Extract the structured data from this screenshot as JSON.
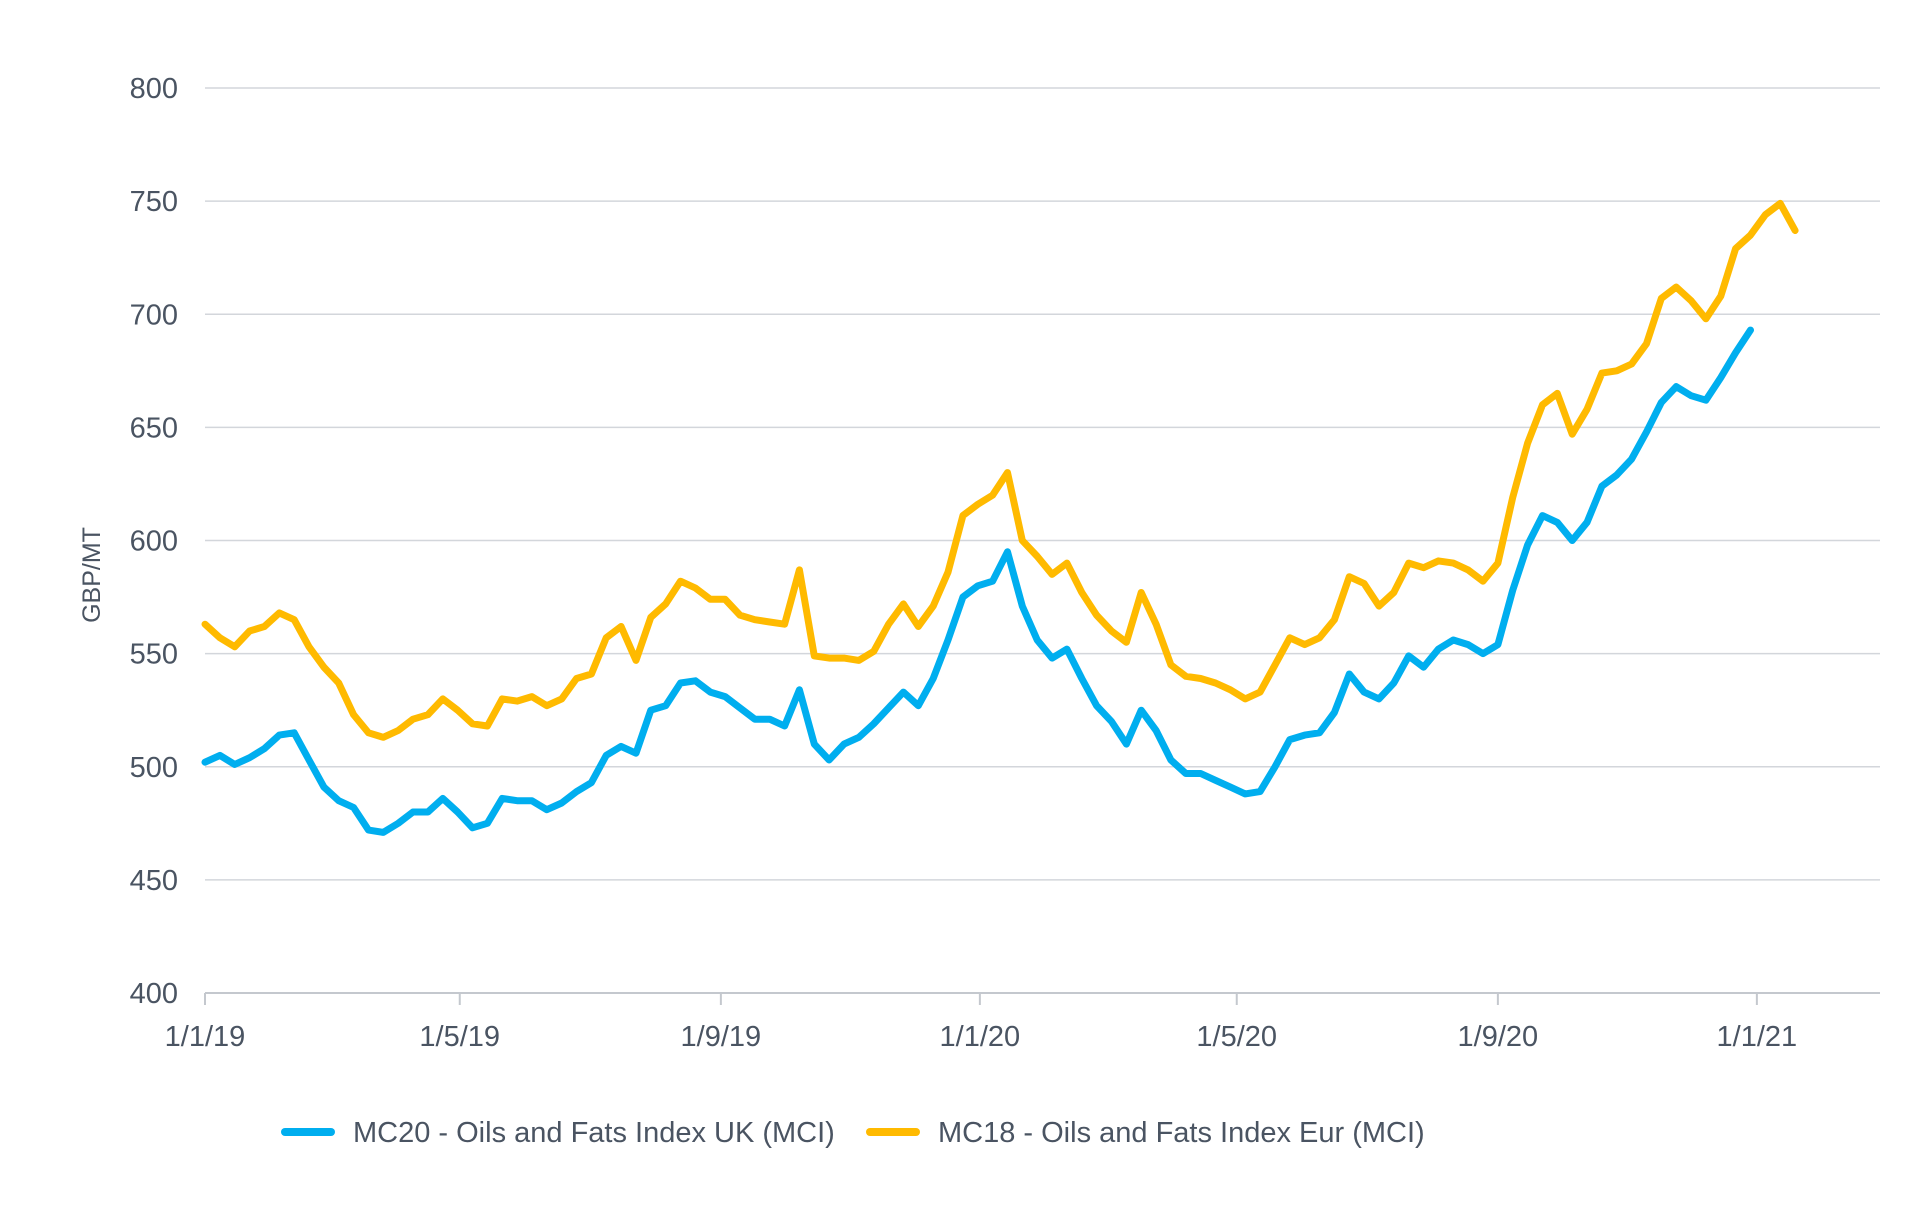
{
  "chart_data": {
    "type": "line",
    "title": "",
    "xlabel": "",
    "ylabel": "GBP/MT",
    "ylim": [
      400,
      800
    ],
    "yticks": [
      400,
      450,
      500,
      550,
      600,
      650,
      700,
      750,
      800
    ],
    "xlim": [
      "2019-01-01",
      "2021-02-28"
    ],
    "xticks": [
      {
        "date": "2019-01-01",
        "label": "1/1/19"
      },
      {
        "date": "2019-05-01",
        "label": "1/5/19"
      },
      {
        "date": "2019-09-01",
        "label": "1/9/19"
      },
      {
        "date": "2020-01-01",
        "label": "1/1/20"
      },
      {
        "date": "2020-05-01",
        "label": "1/5/20"
      },
      {
        "date": "2020-09-01",
        "label": "1/9/20"
      },
      {
        "date": "2021-01-01",
        "label": "1/1/21"
      }
    ],
    "grid": true,
    "legend_position": "bottom",
    "series": [
      {
        "name": "MC20 - Oils and Fats Index UK (MCI)",
        "color": "#00aeef",
        "points": [
          [
            "2019-01-01",
            502
          ],
          [
            "2019-01-08",
            505
          ],
          [
            "2019-01-15",
            501
          ],
          [
            "2019-01-22",
            504
          ],
          [
            "2019-01-29",
            508
          ],
          [
            "2019-02-05",
            514
          ],
          [
            "2019-02-12",
            515
          ],
          [
            "2019-02-19",
            503
          ],
          [
            "2019-02-26",
            491
          ],
          [
            "2019-03-05",
            485
          ],
          [
            "2019-03-12",
            482
          ],
          [
            "2019-03-19",
            472
          ],
          [
            "2019-03-26",
            471
          ],
          [
            "2019-04-02",
            475
          ],
          [
            "2019-04-09",
            480
          ],
          [
            "2019-04-16",
            480
          ],
          [
            "2019-04-23",
            486
          ],
          [
            "2019-04-30",
            480
          ],
          [
            "2019-05-07",
            473
          ],
          [
            "2019-05-14",
            475
          ],
          [
            "2019-05-21",
            486
          ],
          [
            "2019-05-28",
            485
          ],
          [
            "2019-06-04",
            485
          ],
          [
            "2019-06-11",
            481
          ],
          [
            "2019-06-18",
            484
          ],
          [
            "2019-06-25",
            489
          ],
          [
            "2019-07-02",
            493
          ],
          [
            "2019-07-09",
            505
          ],
          [
            "2019-07-16",
            509
          ],
          [
            "2019-07-23",
            506
          ],
          [
            "2019-07-30",
            525
          ],
          [
            "2019-08-06",
            527
          ],
          [
            "2019-08-13",
            537
          ],
          [
            "2019-08-20",
            538
          ],
          [
            "2019-08-27",
            533
          ],
          [
            "2019-09-03",
            531
          ],
          [
            "2019-09-10",
            526
          ],
          [
            "2019-09-17",
            521
          ],
          [
            "2019-09-24",
            521
          ],
          [
            "2019-10-01",
            518
          ],
          [
            "2019-10-08",
            534
          ],
          [
            "2019-10-15",
            510
          ],
          [
            "2019-10-22",
            503
          ],
          [
            "2019-10-29",
            510
          ],
          [
            "2019-11-05",
            513
          ],
          [
            "2019-11-12",
            519
          ],
          [
            "2019-11-19",
            526
          ],
          [
            "2019-11-26",
            533
          ],
          [
            "2019-12-03",
            527
          ],
          [
            "2019-12-10",
            539
          ],
          [
            "2019-12-17",
            556
          ],
          [
            "2019-12-24",
            575
          ],
          [
            "2019-12-31",
            580
          ],
          [
            "2020-01-07",
            582
          ],
          [
            "2020-01-14",
            595
          ],
          [
            "2020-01-21",
            571
          ],
          [
            "2020-01-28",
            556
          ],
          [
            "2020-02-04",
            548
          ],
          [
            "2020-02-11",
            552
          ],
          [
            "2020-02-18",
            539
          ],
          [
            "2020-02-25",
            527
          ],
          [
            "2020-03-03",
            520
          ],
          [
            "2020-03-10",
            510
          ],
          [
            "2020-03-17",
            525
          ],
          [
            "2020-03-24",
            516
          ],
          [
            "2020-03-31",
            503
          ],
          [
            "2020-04-07",
            497
          ],
          [
            "2020-04-14",
            497
          ],
          [
            "2020-04-21",
            494
          ],
          [
            "2020-04-28",
            491
          ],
          [
            "2020-05-05",
            488
          ],
          [
            "2020-05-12",
            489
          ],
          [
            "2020-05-19",
            500
          ],
          [
            "2020-05-26",
            512
          ],
          [
            "2020-06-02",
            514
          ],
          [
            "2020-06-09",
            515
          ],
          [
            "2020-06-16",
            524
          ],
          [
            "2020-06-23",
            541
          ],
          [
            "2020-06-30",
            533
          ],
          [
            "2020-07-07",
            530
          ],
          [
            "2020-07-14",
            537
          ],
          [
            "2020-07-21",
            549
          ],
          [
            "2020-07-28",
            544
          ],
          [
            "2020-08-04",
            552
          ],
          [
            "2020-08-11",
            556
          ],
          [
            "2020-08-18",
            554
          ],
          [
            "2020-08-25",
            550
          ],
          [
            "2020-09-01",
            554
          ],
          [
            "2020-09-08",
            578
          ],
          [
            "2020-09-15",
            598
          ],
          [
            "2020-09-22",
            611
          ],
          [
            "2020-09-29",
            608
          ],
          [
            "2020-10-06",
            600
          ],
          [
            "2020-10-13",
            608
          ],
          [
            "2020-10-20",
            624
          ],
          [
            "2020-10-27",
            629
          ],
          [
            "2020-11-03",
            636
          ],
          [
            "2020-11-10",
            648
          ],
          [
            "2020-11-17",
            661
          ],
          [
            "2020-11-24",
            668
          ],
          [
            "2020-12-01",
            664
          ],
          [
            "2020-12-08",
            662
          ],
          [
            "2020-12-15",
            672
          ],
          [
            "2020-12-22",
            683
          ],
          [
            "2020-12-29",
            693
          ]
        ]
      },
      {
        "name": "MC18 - Oils and Fats Index Eur (MCI)",
        "color": "#ffba00",
        "points": [
          [
            "2019-01-01",
            563
          ],
          [
            "2019-01-08",
            557
          ],
          [
            "2019-01-15",
            553
          ],
          [
            "2019-01-22",
            560
          ],
          [
            "2019-01-29",
            562
          ],
          [
            "2019-02-05",
            568
          ],
          [
            "2019-02-12",
            565
          ],
          [
            "2019-02-19",
            553
          ],
          [
            "2019-02-26",
            544
          ],
          [
            "2019-03-05",
            537
          ],
          [
            "2019-03-12",
            523
          ],
          [
            "2019-03-19",
            515
          ],
          [
            "2019-03-26",
            513
          ],
          [
            "2019-04-02",
            516
          ],
          [
            "2019-04-09",
            521
          ],
          [
            "2019-04-16",
            523
          ],
          [
            "2019-04-23",
            530
          ],
          [
            "2019-04-30",
            525
          ],
          [
            "2019-05-07",
            519
          ],
          [
            "2019-05-14",
            518
          ],
          [
            "2019-05-21",
            530
          ],
          [
            "2019-05-28",
            529
          ],
          [
            "2019-06-04",
            531
          ],
          [
            "2019-06-11",
            527
          ],
          [
            "2019-06-18",
            530
          ],
          [
            "2019-06-25",
            539
          ],
          [
            "2019-07-02",
            541
          ],
          [
            "2019-07-09",
            557
          ],
          [
            "2019-07-16",
            562
          ],
          [
            "2019-07-23",
            547
          ],
          [
            "2019-07-30",
            566
          ],
          [
            "2019-08-06",
            572
          ],
          [
            "2019-08-13",
            582
          ],
          [
            "2019-08-20",
            579
          ],
          [
            "2019-08-27",
            574
          ],
          [
            "2019-09-03",
            574
          ],
          [
            "2019-09-10",
            567
          ],
          [
            "2019-09-17",
            565
          ],
          [
            "2019-09-24",
            564
          ],
          [
            "2019-10-01",
            563
          ],
          [
            "2019-10-08",
            587
          ],
          [
            "2019-10-15",
            549
          ],
          [
            "2019-10-22",
            548
          ],
          [
            "2019-10-29",
            548
          ],
          [
            "2019-11-05",
            547
          ],
          [
            "2019-11-12",
            551
          ],
          [
            "2019-11-19",
            563
          ],
          [
            "2019-11-26",
            572
          ],
          [
            "2019-12-03",
            562
          ],
          [
            "2019-12-10",
            571
          ],
          [
            "2019-12-17",
            586
          ],
          [
            "2019-12-24",
            611
          ],
          [
            "2019-12-31",
            616
          ],
          [
            "2020-01-07",
            620
          ],
          [
            "2020-01-14",
            630
          ],
          [
            "2020-01-21",
            600
          ],
          [
            "2020-01-28",
            593
          ],
          [
            "2020-02-04",
            585
          ],
          [
            "2020-02-11",
            590
          ],
          [
            "2020-02-18",
            577
          ],
          [
            "2020-02-25",
            567
          ],
          [
            "2020-03-03",
            560
          ],
          [
            "2020-03-10",
            555
          ],
          [
            "2020-03-17",
            577
          ],
          [
            "2020-03-24",
            563
          ],
          [
            "2020-03-31",
            545
          ],
          [
            "2020-04-07",
            540
          ],
          [
            "2020-04-14",
            539
          ],
          [
            "2020-04-21",
            537
          ],
          [
            "2020-04-28",
            534
          ],
          [
            "2020-05-05",
            530
          ],
          [
            "2020-05-12",
            533
          ],
          [
            "2020-05-19",
            545
          ],
          [
            "2020-05-26",
            557
          ],
          [
            "2020-06-02",
            554
          ],
          [
            "2020-06-09",
            557
          ],
          [
            "2020-06-16",
            565
          ],
          [
            "2020-06-23",
            584
          ],
          [
            "2020-06-30",
            581
          ],
          [
            "2020-07-07",
            571
          ],
          [
            "2020-07-14",
            577
          ],
          [
            "2020-07-21",
            590
          ],
          [
            "2020-07-28",
            588
          ],
          [
            "2020-08-04",
            591
          ],
          [
            "2020-08-11",
            590
          ],
          [
            "2020-08-18",
            587
          ],
          [
            "2020-08-25",
            582
          ],
          [
            "2020-09-01",
            590
          ],
          [
            "2020-09-08",
            619
          ],
          [
            "2020-09-15",
            643
          ],
          [
            "2020-09-22",
            660
          ],
          [
            "2020-09-29",
            665
          ],
          [
            "2020-10-06",
            647
          ],
          [
            "2020-10-13",
            658
          ],
          [
            "2020-10-20",
            674
          ],
          [
            "2020-10-27",
            675
          ],
          [
            "2020-11-03",
            678
          ],
          [
            "2020-11-10",
            687
          ],
          [
            "2020-11-17",
            707
          ],
          [
            "2020-11-24",
            712
          ],
          [
            "2020-12-01",
            706
          ],
          [
            "2020-12-08",
            698
          ],
          [
            "2020-12-15",
            708
          ],
          [
            "2020-12-22",
            729
          ],
          [
            "2020-12-29",
            735
          ],
          [
            "2021-01-05",
            744
          ],
          [
            "2021-01-12",
            749
          ],
          [
            "2021-01-19",
            737
          ]
        ]
      }
    ]
  }
}
